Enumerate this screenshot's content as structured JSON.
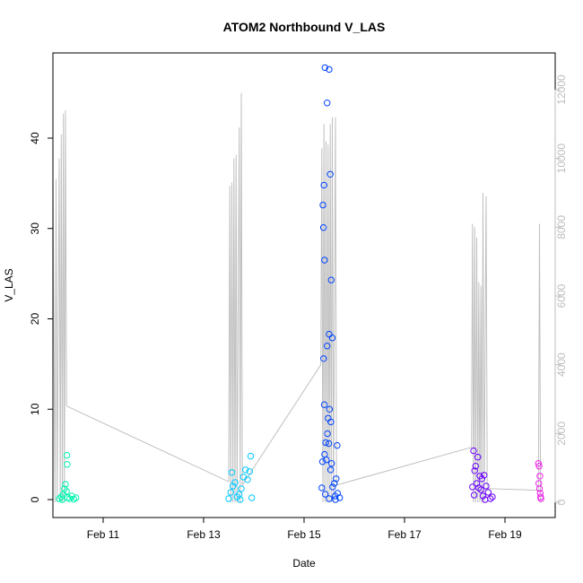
{
  "chart_data": {
    "type": "scatter",
    "title": "ATOM2 Northbound V_LAS",
    "xlabel": "Date",
    "ylabel": "V_LAS",
    "x_axis": {
      "kind": "date",
      "range": [
        "2023-02-10",
        "2023-02-20"
      ],
      "tick_labels": [
        "Feb 11",
        "Feb 13",
        "Feb 15",
        "Feb 17",
        "Feb 19"
      ]
    },
    "y_axis_left": {
      "range": [
        0,
        48
      ],
      "ticks": [
        0,
        10,
        20,
        30,
        40
      ]
    },
    "y_axis_right": {
      "range": [
        0,
        12000
      ],
      "ticks": [
        0,
        2000,
        4000,
        6000,
        8000,
        10000,
        12000
      ],
      "color": "#bdbdbd"
    },
    "grid": false,
    "legend": "none",
    "series": [
      {
        "type": "scatter-points",
        "axis": "left",
        "groups": [
          {
            "color": "#00f5b0",
            "points": [
              [
                "2023-02-10 03:00",
                0.1
              ],
              [
                "2023-02-10 04:00",
                0.3
              ],
              [
                "2023-02-10 05:00",
                0.6
              ],
              [
                "2023-02-10 05:30",
                1.2
              ],
              [
                "2023-02-10 06:00",
                1.7
              ],
              [
                "2023-02-10 06:30",
                0.9
              ],
              [
                "2023-02-10 07:00",
                0.2
              ],
              [
                "2023-02-10 08:00",
                0.1
              ],
              [
                "2023-02-10 09:00",
                0.4
              ],
              [
                "2023-02-10 10:00",
                0.05
              ],
              [
                "2023-02-10 11:00",
                0.2
              ],
              [
                "2023-02-10 04:30",
                0.0
              ],
              [
                "2023-02-10 06:40",
                4.9
              ],
              [
                "2023-02-10 06:50",
                3.9
              ]
            ]
          },
          {
            "color": "#00c8ff",
            "points": [
              [
                "2023-02-13 12:00",
                0.1
              ],
              [
                "2023-02-13 13:00",
                0.8
              ],
              [
                "2023-02-13 14:00",
                1.5
              ],
              [
                "2023-02-13 15:00",
                1.9
              ],
              [
                "2023-02-13 16:00",
                0.3
              ],
              [
                "2023-02-13 17:00",
                0.6
              ],
              [
                "2023-02-13 18:00",
                1.2
              ],
              [
                "2023-02-13 19:00",
                2.5
              ],
              [
                "2023-02-13 20:00",
                3.3
              ],
              [
                "2023-02-13 21:00",
                2.2
              ],
              [
                "2023-02-13 22:00",
                3.1
              ],
              [
                "2023-02-13 22:30",
                4.8
              ],
              [
                "2023-02-13 13:30",
                3.0
              ],
              [
                "2023-02-13 23:00",
                0.2
              ],
              [
                "2023-02-13 17:30",
                0.0
              ]
            ]
          },
          {
            "color": "#0044ff",
            "points": [
              [
                "2023-02-15 10:00",
                47.8
              ],
              [
                "2023-02-15 12:00",
                47.6
              ],
              [
                "2023-02-15 11:00",
                43.9
              ],
              [
                "2023-02-15 12:30",
                36.0
              ],
              [
                "2023-02-15 09:30",
                34.8
              ],
              [
                "2023-02-15 09:00",
                32.6
              ],
              [
                "2023-02-15 09:15",
                30.1
              ],
              [
                "2023-02-15 09:45",
                26.5
              ],
              [
                "2023-02-15 13:00",
                24.3
              ],
              [
                "2023-02-15 12:00",
                18.3
              ],
              [
                "2023-02-15 13:30",
                17.9
              ],
              [
                "2023-02-15 11:00",
                17.0
              ],
              [
                "2023-02-15 09:20",
                15.6
              ],
              [
                "2023-02-15 09:40",
                10.5
              ],
              [
                "2023-02-15 12:10",
                10.0
              ],
              [
                "2023-02-15 11:30",
                9.0
              ],
              [
                "2023-02-15 12:50",
                8.6
              ],
              [
                "2023-02-15 11:10",
                7.3
              ],
              [
                "2023-02-15 10:20",
                6.3
              ],
              [
                "2023-02-15 11:50",
                6.2
              ],
              [
                "2023-02-15 15:50",
                6.0
              ],
              [
                "2023-02-15 09:50",
                5.0
              ],
              [
                "2023-02-15 10:40",
                4.4
              ],
              [
                "2023-02-15 08:50",
                4.2
              ],
              [
                "2023-02-15 13:10",
                4.0
              ],
              [
                "2023-02-15 12:40",
                3.3
              ],
              [
                "2023-02-15 15:20",
                2.3
              ],
              [
                "2023-02-15 14:30",
                1.8
              ],
              [
                "2023-02-15 13:40",
                1.4
              ],
              [
                "2023-02-15 08:30",
                1.3
              ],
              [
                "2023-02-15 16:00",
                0.7
              ],
              [
                "2023-02-15 10:10",
                0.6
              ],
              [
                "2023-02-15 14:50",
                0.4
              ],
              [
                "2023-02-15 12:00",
                0.1
              ],
              [
                "2023-02-15 15:00",
                0.0
              ],
              [
                "2023-02-15 17:00",
                0.2
              ]
            ]
          },
          {
            "color": "#6a00ff",
            "points": [
              [
                "2023-02-18 09:00",
                5.4
              ],
              [
                "2023-02-18 11:00",
                4.7
              ],
              [
                "2023-02-18 10:00",
                3.7
              ],
              [
                "2023-02-18 09:30",
                3.2
              ],
              [
                "2023-02-18 12:00",
                2.6
              ],
              [
                "2023-02-18 13:00",
                2.3
              ],
              [
                "2023-02-18 14:00",
                2.7
              ],
              [
                "2023-02-18 10:30",
                1.8
              ],
              [
                "2023-02-18 11:30",
                1.3
              ],
              [
                "2023-02-18 12:30",
                1.1
              ],
              [
                "2023-02-18 08:30",
                1.4
              ],
              [
                "2023-02-18 15:00",
                1.5
              ],
              [
                "2023-02-18 16:00",
                0.8
              ],
              [
                "2023-02-18 09:15",
                0.5
              ],
              [
                "2023-02-18 13:30",
                0.4
              ],
              [
                "2023-02-18 17:00",
                0.1
              ],
              [
                "2023-02-18 14:30",
                0.0
              ],
              [
                "2023-02-18 18:00",
                0.3
              ]
            ]
          },
          {
            "color": "#ee22e8",
            "points": [
              [
                "2023-02-19 16:00",
                4.0
              ],
              [
                "2023-02-19 16:20",
                3.7
              ],
              [
                "2023-02-19 16:40",
                2.6
              ],
              [
                "2023-02-19 16:10",
                1.8
              ],
              [
                "2023-02-19 16:30",
                1.2
              ],
              [
                "2023-02-19 16:50",
                0.7
              ],
              [
                "2023-02-19 17:00",
                0.3
              ],
              [
                "2023-02-19 17:10",
                0.1
              ]
            ]
          }
        ]
      },
      {
        "type": "line",
        "axis": "right",
        "color": "#c0c0c0",
        "points": [
          [
            "2023-02-10 00:00",
            9600
          ],
          [
            "2023-02-10 01:00",
            0
          ],
          [
            "2023-02-10 01:30",
            9400
          ],
          [
            "2023-02-10 02:00",
            0
          ],
          [
            "2023-02-10 03:00",
            10000
          ],
          [
            "2023-02-10 03:30",
            0
          ],
          [
            "2023-02-10 04:00",
            10700
          ],
          [
            "2023-02-10 04:30",
            0
          ],
          [
            "2023-02-10 05:00",
            11300
          ],
          [
            "2023-02-10 05:30",
            0
          ],
          [
            "2023-02-10 06:00",
            11400
          ],
          [
            "2023-02-10 06:30",
            2800
          ],
          [
            "2023-02-13 12:00",
            600
          ],
          [
            "2023-02-13 12:30",
            9200
          ],
          [
            "2023-02-13 13:00",
            0
          ],
          [
            "2023-02-13 13:30",
            9300
          ],
          [
            "2023-02-13 14:00",
            0
          ],
          [
            "2023-02-13 14:30",
            10000
          ],
          [
            "2023-02-13 15:00",
            0
          ],
          [
            "2023-02-13 15:30",
            10100
          ],
          [
            "2023-02-13 16:00",
            0
          ],
          [
            "2023-02-13 17:00",
            10900
          ],
          [
            "2023-02-13 17:30",
            0
          ],
          [
            "2023-02-13 18:00",
            11900
          ],
          [
            "2023-02-13 18:30",
            500
          ],
          [
            "2023-02-15 08:00",
            4000
          ],
          [
            "2023-02-15 08:30",
            10300
          ],
          [
            "2023-02-15 09:00",
            0
          ],
          [
            "2023-02-15 09:30",
            11000
          ],
          [
            "2023-02-15 10:00",
            0
          ],
          [
            "2023-02-15 10:30",
            10500
          ],
          [
            "2023-02-15 11:00",
            0
          ],
          [
            "2023-02-15 11:30",
            10400
          ],
          [
            "2023-02-15 12:00",
            0
          ],
          [
            "2023-02-15 12:30",
            11000
          ],
          [
            "2023-02-15 13:00",
            0
          ],
          [
            "2023-02-15 13:30",
            11200
          ],
          [
            "2023-02-15 14:00",
            0
          ],
          [
            "2023-02-15 15:00",
            11200
          ],
          [
            "2023-02-15 15:30",
            500
          ],
          [
            "2023-02-18 08:00",
            1600
          ],
          [
            "2023-02-18 08:30",
            8100
          ],
          [
            "2023-02-18 09:00",
            0
          ],
          [
            "2023-02-18 09:30",
            8000
          ],
          [
            "2023-02-18 10:00",
            0
          ],
          [
            "2023-02-18 10:30",
            7700
          ],
          [
            "2023-02-18 11:00",
            0
          ],
          [
            "2023-02-18 11:30",
            6400
          ],
          [
            "2023-02-18 12:00",
            0
          ],
          [
            "2023-02-18 12:30",
            6300
          ],
          [
            "2023-02-18 13:00",
            0
          ],
          [
            "2023-02-18 13:30",
            9000
          ],
          [
            "2023-02-18 14:00",
            0
          ],
          [
            "2023-02-18 15:00",
            8900
          ],
          [
            "2023-02-18 15:30",
            400
          ],
          [
            "2023-02-19 16:00",
            350
          ],
          [
            "2023-02-19 16:30",
            8100
          ],
          [
            "2023-02-19 17:00",
            0
          ]
        ]
      }
    ]
  }
}
